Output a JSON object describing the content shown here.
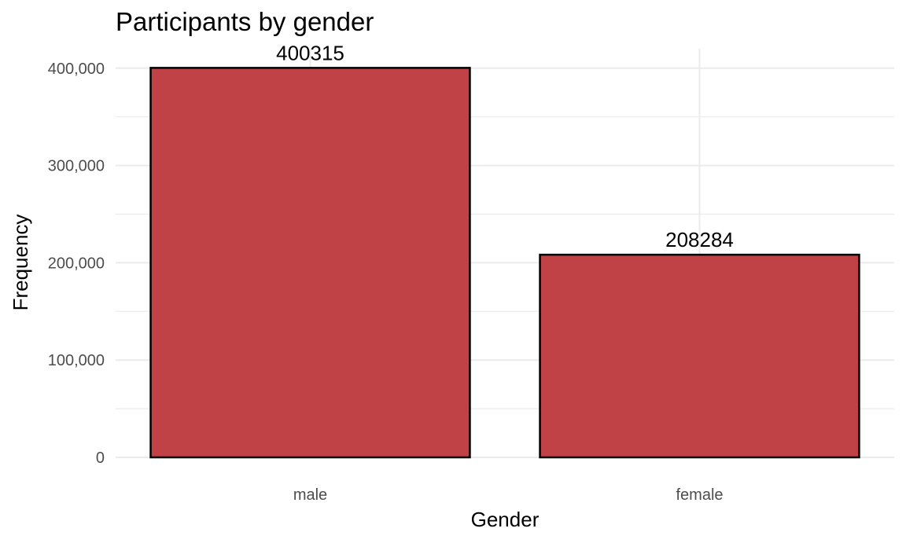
{
  "chart_data": {
    "type": "bar",
    "title": "Participants by gender",
    "xlabel": "Gender",
    "ylabel": "Frequency",
    "categories": [
      "male",
      "female"
    ],
    "values": [
      400315,
      208284
    ],
    "data_labels": [
      "400315",
      "208284"
    ],
    "ylim": [
      0,
      420000
    ],
    "yticks": [
      0,
      100000,
      200000,
      300000,
      400000
    ],
    "ytick_labels": [
      "0",
      "100,000",
      "200,000",
      "300,000",
      "400,000"
    ],
    "grid": true,
    "legend": "none",
    "colors": {
      "bar_fill": "#c04146",
      "bar_outline": "#000000"
    }
  }
}
